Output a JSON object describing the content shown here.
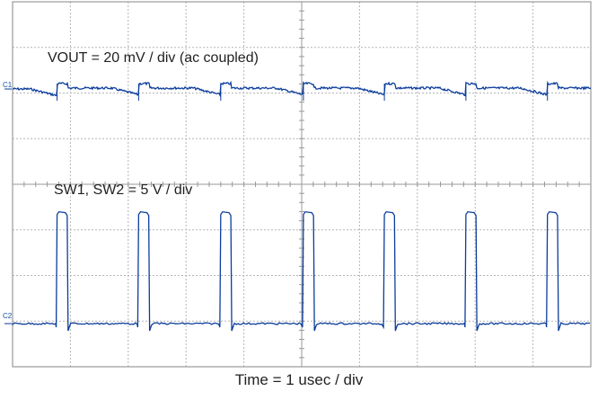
{
  "chart_data": {
    "type": "line",
    "title": "",
    "xlabel": "Time = 1 usec / div",
    "ylabel": "",
    "grid": true,
    "divisions": {
      "x": 10,
      "y": 8
    },
    "time_per_div_us": 1,
    "trace_color": "#0b3d9c",
    "series": [
      {
        "name": "VOUT",
        "channel_marker": "C1",
        "label": "VOUT = 20 mV / div (ac coupled)",
        "scale": "20 mV/div",
        "coupling": "ac",
        "description": "Ripple ~±0.2 div around C1 reference with small step/dip at each switching edge",
        "switching_events_x_div": [
          0.77,
          2.18,
          3.6,
          5.03,
          6.43,
          7.84,
          9.25
        ]
      },
      {
        "name": "SW1, SW2",
        "channel_marker": "C2",
        "label": "SW1, SW2 = 5 V / div",
        "scale": "5 V/div",
        "pulse_high_div": 2.45,
        "pulse_width_div": 0.19,
        "period_div": 1.41,
        "pulse_start_x_div": [
          0.77,
          2.18,
          3.6,
          5.03,
          6.43,
          7.84,
          9.25
        ]
      }
    ]
  },
  "labels": {
    "vout": "VOUT = 20 mV / div (ac coupled)",
    "sw": "SW1, SW2 = 5 V / div",
    "time": "Time = 1 usec / div",
    "c1": "C1",
    "c2": "C2"
  }
}
